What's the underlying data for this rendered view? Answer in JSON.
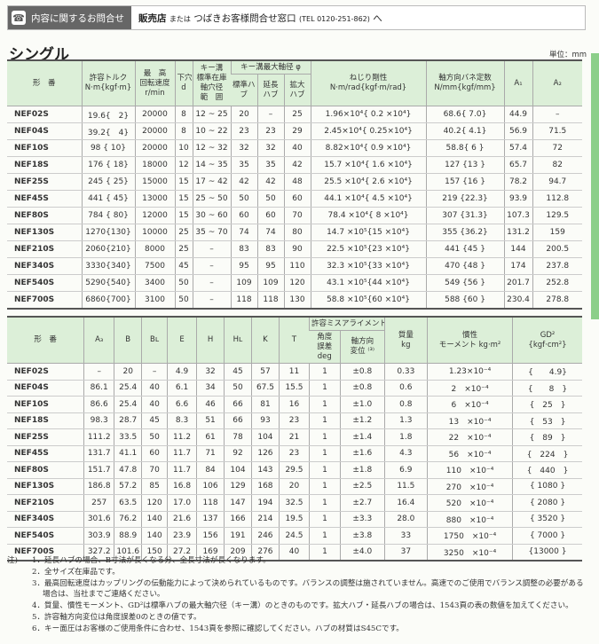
{
  "banner": {
    "icon": "telephone-icon",
    "label": "内容に関するお問合せ",
    "text_main": "販売店",
    "text_or": "または",
    "text_contact": "つばきお客様問合せ窓口",
    "text_tel": "(TEL 0120-251-862)",
    "text_end": "へ"
  },
  "section_title": "シングル",
  "unit": "単位：mm",
  "table1": {
    "headers": {
      "model": "形　番",
      "torque": "許容トルク",
      "torque_unit": "N·m{kgf·m}",
      "speed": "最　高",
      "speed2": "回転速度",
      "speed_unit": "r/min",
      "pilot": "下穴",
      "pilot_unit": "d",
      "keyrange": "キー溝",
      "keyrange2": "標準在庫",
      "keyrange3": "軸穴径",
      "keyrange4": "範　囲",
      "maxbore": "キー溝最大軸径 φ",
      "std": "標準ハブ",
      "ext": "延長ハブ",
      "enl": "拡大ハブ",
      "rigidity": "ねじり剛性",
      "rigidity_unit": "N·m/rad{kgf·m/rad}",
      "spring": "軸方向バネ定数",
      "spring_unit": "N/mm{kgf/mm}",
      "a1": "A₁",
      "a2": "A₂"
    },
    "rows": [
      [
        "NEF02S",
        "19.6{　2}",
        "20000",
        "8",
        "12 ~ 25",
        "20",
        "–",
        "25",
        "1.96×10⁴{ 0.2 ×10⁴}",
        "68.6{ 7.0}",
        "44.9",
        "–"
      ],
      [
        "NEF04S",
        "39.2{　4}",
        "20000",
        "8",
        "10 ~ 22",
        "23",
        "23",
        "29",
        "2.45×10⁴{ 0.25×10⁴}",
        "40.2{ 4.1}",
        "56.9",
        "71.5"
      ],
      [
        "NEF10S",
        "98 { 10}",
        "20000",
        "10",
        "12 ~ 32",
        "32",
        "32",
        "40",
        "8.82×10⁴{ 0.9 ×10⁴}",
        "58.8{ 6 }",
        "57.4",
        "72"
      ],
      [
        "NEF18S",
        "176 { 18}",
        "18000",
        "12",
        "14 ~ 35",
        "35",
        "35",
        "42",
        "15.7 ×10⁴{ 1.6 ×10⁴}",
        "127 {13 }",
        "65.7",
        "82"
      ],
      [
        "NEF25S",
        "245 { 25}",
        "15000",
        "15",
        "17 ~ 42",
        "42",
        "42",
        "48",
        "25.5 ×10⁴{ 2.6 ×10⁴}",
        "157 {16 }",
        "78.2",
        "94.7"
      ],
      [
        "NEF45S",
        "441 { 45}",
        "13000",
        "15",
        "25 ~ 50",
        "50",
        "50",
        "60",
        "44.1 ×10⁴{ 4.5 ×10⁴}",
        "219 {22.3}",
        "93.9",
        "112.8"
      ],
      [
        "NEF80S",
        "784 { 80}",
        "12000",
        "15",
        "30 ~ 60",
        "60",
        "60",
        "70",
        "78.4 ×10⁴{ 8 ×10⁴}",
        "307 {31.3}",
        "107.3",
        "129.5"
      ],
      [
        "NEF130S",
        "1270{130}",
        "10000",
        "25",
        "35 ~ 70",
        "74",
        "74",
        "80",
        "14.7 ×10⁵{15 ×10⁴}",
        "355 {36.2}",
        "131.2",
        "159"
      ],
      [
        "NEF210S",
        "2060{210}",
        "8000",
        "25",
        "–",
        "83",
        "83",
        "90",
        "22.5 ×10⁵{23 ×10⁴}",
        "441 {45 }",
        "144",
        "200.5"
      ],
      [
        "NEF340S",
        "3330{340}",
        "7500",
        "45",
        "–",
        "95",
        "95",
        "110",
        "32.3 ×10⁵{33 ×10⁴}",
        "470 {48 }",
        "174",
        "237.8"
      ],
      [
        "NEF540S",
        "5290{540}",
        "3400",
        "50",
        "–",
        "109",
        "109",
        "120",
        "43.1 ×10⁵{44 ×10⁴}",
        "549 {56 }",
        "201.7",
        "252.8"
      ],
      [
        "NEF700S",
        "6860{700}",
        "3100",
        "50",
        "–",
        "118",
        "118",
        "130",
        "58.8 ×10⁵{60 ×10⁴}",
        "588 {60 }",
        "230.4",
        "278.8"
      ]
    ]
  },
  "table2": {
    "headers": {
      "model": "形　番",
      "a3": "A₃",
      "b": "B",
      "bl": "Bʟ",
      "e": "E",
      "h": "H",
      "hl": "Hʟ",
      "k": "K",
      "t": "T",
      "misalign": "許容ミスアライメント",
      "angle": "角度",
      "angle2": "誤差",
      "angle_unit": "deg",
      "axial": "軸方向",
      "axial2": "変位 ⁽³⁾",
      "mass": "質量",
      "mass_unit": "kg",
      "inertia": "慣性",
      "inertia_unit": "モーメント kg·m²",
      "gd2": "GD²",
      "gd2_unit": "{kgf·cm²}"
    },
    "rows": [
      [
        "NEF02S",
        "–",
        "20",
        "–",
        "4.9",
        "32",
        "45",
        "57",
        "11",
        "1",
        "±0.8",
        "0.33",
        "1.23×10⁻⁴",
        "{　　4.9}"
      ],
      [
        "NEF04S",
        "86.1",
        "25.4",
        "40",
        "6.1",
        "34",
        "50",
        "67.5",
        "15.5",
        "1",
        "±0.8",
        "0.6",
        "2　×10⁻⁴",
        "{　　8　}"
      ],
      [
        "NEF10S",
        "86.6",
        "25.4",
        "40",
        "6.6",
        "46",
        "66",
        "81",
        "16",
        "1",
        "±1.0",
        "0.8",
        "6　×10⁻⁴",
        "{　25　}"
      ],
      [
        "NEF18S",
        "98.3",
        "28.7",
        "45",
        "8.3",
        "51",
        "66",
        "93",
        "23",
        "1",
        "±1.2",
        "1.3",
        "13　×10⁻⁴",
        "{　53　}"
      ],
      [
        "NEF25S",
        "111.2",
        "33.5",
        "50",
        "11.2",
        "61",
        "78",
        "104",
        "21",
        "1",
        "±1.4",
        "1.8",
        "22　×10⁻⁴",
        "{　89　}"
      ],
      [
        "NEF45S",
        "131.7",
        "41.1",
        "60",
        "11.7",
        "71",
        "92",
        "126",
        "23",
        "1",
        "±1.6",
        "4.3",
        "56　×10⁻⁴",
        "{　224　}"
      ],
      [
        "NEF80S",
        "151.7",
        "47.8",
        "70",
        "11.7",
        "84",
        "104",
        "143",
        "29.5",
        "1",
        "±1.8",
        "6.9",
        "110　×10⁻⁴",
        "{　440　}"
      ],
      [
        "NEF130S",
        "186.8",
        "57.2",
        "85",
        "16.8",
        "106",
        "129",
        "168",
        "20",
        "1",
        "±2.5",
        "11.5",
        "270　×10⁻⁴",
        "{ 1080 }"
      ],
      [
        "NEF210S",
        "257",
        "63.5",
        "120",
        "17.0",
        "118",
        "147",
        "194",
        "32.5",
        "1",
        "±2.7",
        "16.4",
        "520　×10⁻⁴",
        "{ 2080 }"
      ],
      [
        "NEF340S",
        "301.6",
        "76.2",
        "140",
        "21.6",
        "137",
        "166",
        "214",
        "19.5",
        "1",
        "±3.3",
        "28.0",
        "880　×10⁻⁴",
        "{ 3520 }"
      ],
      [
        "NEF540S",
        "303.9",
        "88.9",
        "140",
        "23.9",
        "156",
        "191",
        "246",
        "24.5",
        "1",
        "±3.8",
        "33",
        "1750　×10⁻⁴",
        "{ 7000 }"
      ],
      [
        "NEF700S",
        "327.2",
        "101.6",
        "150",
        "27.2",
        "169",
        "209",
        "276",
        "40",
        "1",
        "±4.0",
        "37",
        "3250　×10⁻⁴",
        "{13000 }"
      ]
    ]
  },
  "notes": {
    "heading": "注)",
    "items": [
      "1．延長ハブの場合、B寸法が長くなる分、全長寸法が長くなります。",
      "2．全サイズ在庫品です。",
      "3．最高回転速度はカップリングの伝動能力によって決められているものです。バランスの調整は施されていません。高速でのご使用でバランス調整の必要がある場合は、当社までご連絡ください。",
      "4．質量、慣性モーメント、GD²は標準ハブの最大軸穴径（キー溝）のときのものです。拡大ハブ・延長ハブの場合は、1543頁の表の数値を加えてください。",
      "5．許容軸方向変位は角度誤差0のときの値です。",
      "6．キー面圧はお客様のご使用条件に合わせ、1543頁を参照に確認してください。ハブの材質はS45Cです。"
    ]
  }
}
